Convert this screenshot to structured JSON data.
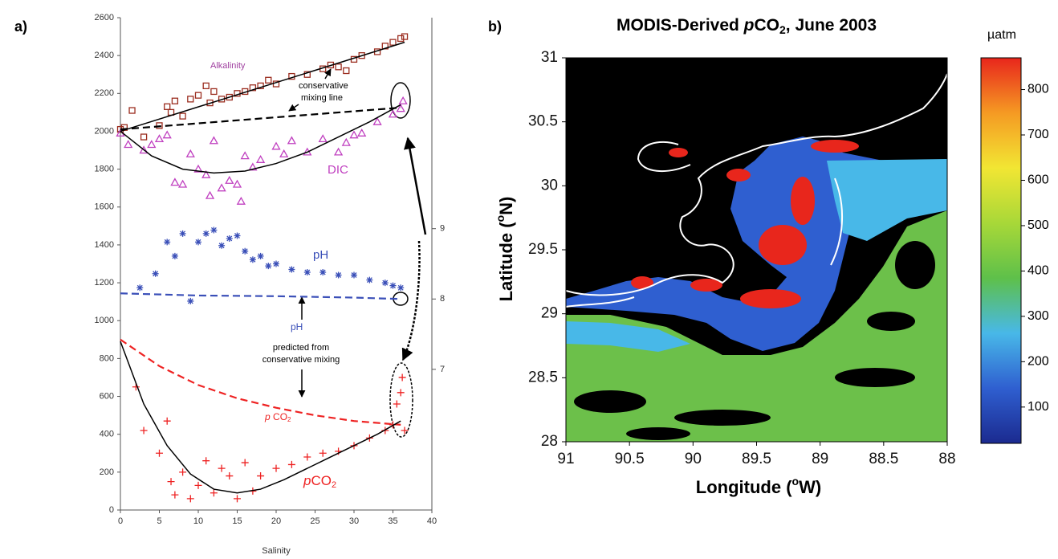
{
  "chart_data": [
    {
      "type": "scatter",
      "panel": "a)",
      "xlabel": "Salinity",
      "xlim": [
        0,
        40
      ],
      "xticks": [
        0,
        5,
        10,
        15,
        20,
        25,
        30,
        35,
        40
      ],
      "ylim": [
        0,
        2600
      ],
      "yticks": [
        0,
        200,
        400,
        600,
        800,
        1000,
        1200,
        1400,
        1600,
        1800,
        2000,
        2200,
        2400,
        2600
      ],
      "y2lim": [
        5,
        12
      ],
      "y2ticks": [
        7,
        8,
        9
      ],
      "annotations": [
        "Alkalinity",
        "conservative",
        "mixing line",
        "DIC",
        "pH",
        "pH",
        "predicted from",
        "conservative mixing",
        [
          "p",
          " CO",
          "2"
        ],
        [
          "p",
          "CO",
          "2"
        ]
      ],
      "series": [
        {
          "marker": "square",
          "color": "#9b2d1f",
          "x": [
            0,
            0.5,
            1.5,
            3,
            5,
            6,
            6.5,
            7,
            8,
            9,
            10,
            11,
            11.5,
            12,
            13,
            14,
            15,
            16,
            17,
            18,
            19,
            20,
            22,
            24,
            26,
            27,
            28,
            29,
            30,
            31,
            33,
            34,
            35,
            36,
            36.5
          ],
          "values": [
            2010,
            2020,
            2110,
            1970,
            2030,
            2130,
            2100,
            2160,
            2080,
            2170,
            2190,
            2240,
            2150,
            2210,
            2170,
            2180,
            2200,
            2210,
            2230,
            2240,
            2270,
            2250,
            2290,
            2300,
            2330,
            2350,
            2340,
            2320,
            2380,
            2400,
            2420,
            2450,
            2470,
            2490,
            2500
          ]
        },
        {
          "marker": "triangle",
          "color": "#c040c0",
          "x": [
            0,
            1,
            3,
            4,
            5,
            6,
            7,
            8,
            9,
            10,
            11,
            11.5,
            12,
            13,
            14,
            15,
            15.5,
            16,
            17,
            18,
            20,
            21,
            22,
            24,
            26,
            28,
            29,
            30,
            31,
            33,
            35,
            36,
            36.3
          ],
          "values": [
            1990,
            1930,
            1900,
            1930,
            1960,
            1980,
            1730,
            1720,
            1880,
            1800,
            1770,
            1660,
            1950,
            1700,
            1740,
            1720,
            1630,
            1870,
            1810,
            1850,
            1920,
            1880,
            1950,
            1890,
            1960,
            1890,
            1940,
            1980,
            1990,
            2050,
            2090,
            2120,
            2160
          ]
        },
        {
          "marker": "asterisk",
          "color": "#3a4fb8",
          "axis": "y2",
          "x": [
            2.5,
            4.5,
            6,
            7,
            8,
            9,
            10,
            11,
            12,
            13,
            14,
            15,
            16,
            17,
            18,
            19,
            20,
            22,
            24,
            26,
            28,
            30,
            32,
            34,
            35,
            36
          ],
          "values": [
            8.16,
            8.36,
            8.81,
            8.61,
            8.93,
            7.97,
            8.81,
            8.93,
            8.98,
            8.76,
            8.86,
            8.9,
            8.68,
            8.56,
            8.61,
            8.47,
            8.5,
            8.42,
            8.38,
            8.38,
            8.34,
            8.34,
            8.27,
            8.23,
            8.19,
            8.16
          ]
        },
        {
          "marker": "plus",
          "color": "#ee2222",
          "x": [
            2,
            3,
            5,
            6,
            6.5,
            7,
            8,
            9,
            10,
            11,
            12,
            13,
            14,
            15,
            16,
            17,
            18,
            20,
            22,
            24,
            26,
            28,
            30,
            32,
            34,
            35,
            35.5,
            36,
            36.2,
            36.5
          ],
          "values": [
            650,
            420,
            300,
            470,
            150,
            80,
            200,
            60,
            130,
            260,
            90,
            220,
            180,
            60,
            250,
            100,
            180,
            220,
            240,
            280,
            300,
            310,
            340,
            380,
            420,
            450,
            560,
            620,
            700,
            420
          ]
        },
        {
          "color": "#000000",
          "x": [
            0,
            36.5
          ],
          "values": [
            2000,
            2470
          ]
        },
        {
          "color": "#000000",
          "dash": true,
          "x": [
            0,
            36
          ],
          "values": [
            2010,
            2125
          ]
        },
        {
          "color": "#000000",
          "x": [
            0,
            4,
            8,
            12,
            16,
            20,
            24,
            28,
            32,
            36
          ],
          "values": [
            2000,
            1870,
            1800,
            1780,
            1790,
            1830,
            1890,
            1970,
            2050,
            2140
          ]
        },
        {
          "color": "#3a4fb8",
          "dash": true,
          "axis": "y2",
          "x": [
            0,
            10,
            20,
            30,
            36
          ],
          "values": [
            8.08,
            8.05,
            8.04,
            8.02,
            8.0
          ]
        },
        {
          "color": "#ee2222",
          "dash": true,
          "x": [
            0,
            5,
            10,
            15,
            20,
            25,
            30,
            36
          ],
          "values": [
            900,
            760,
            660,
            590,
            540,
            500,
            470,
            450
          ]
        },
        {
          "color": "#000000",
          "x": [
            0,
            3,
            6,
            9,
            12,
            15,
            18,
            21,
            24,
            27,
            30,
            33,
            36
          ],
          "values": [
            890,
            560,
            340,
            190,
            110,
            90,
            110,
            160,
            220,
            280,
            340,
            400,
            470
          ]
        }
      ]
    },
    {
      "type": "map",
      "panel": "b)",
      "title": [
        "MODIS-Derived ",
        "p",
        "CO",
        "2",
        ", June 2003"
      ],
      "xlabel": [
        "Longitude (",
        "o",
        "W)"
      ],
      "ylabel": [
        "Latitude (",
        "o",
        "N)"
      ],
      "xlim": [
        91,
        88
      ],
      "xticks": [
        91,
        90.5,
        90,
        89.5,
        89,
        88.5,
        88
      ],
      "ylim": [
        28,
        31
      ],
      "yticks": [
        28,
        28.5,
        29,
        29.5,
        30,
        30.5,
        31
      ],
      "colorbar": {
        "label": "µatm",
        "lim": [
          20,
          870
        ],
        "ticks": [
          100,
          200,
          300,
          400,
          500,
          600,
          700,
          800
        ],
        "colormap": [
          "#1b2a8f",
          "#2f5fd0",
          "#48b8e8",
          "#5ec04a",
          "#a8d838",
          "#f2e633",
          "#f59a23",
          "#e8261c"
        ]
      }
    }
  ]
}
